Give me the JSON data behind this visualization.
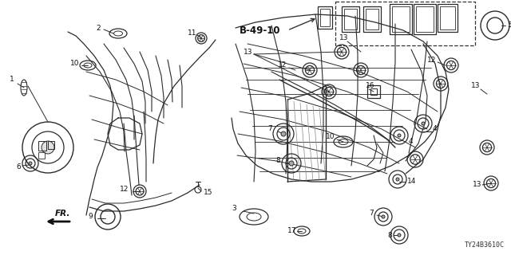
{
  "bg_color": "#ffffff",
  "diagram_code": "TY24B3610C",
  "line_color": "#2a2a2a",
  "label_color": "#111111",
  "figsize": [
    6.4,
    3.2
  ],
  "dpi": 100
}
